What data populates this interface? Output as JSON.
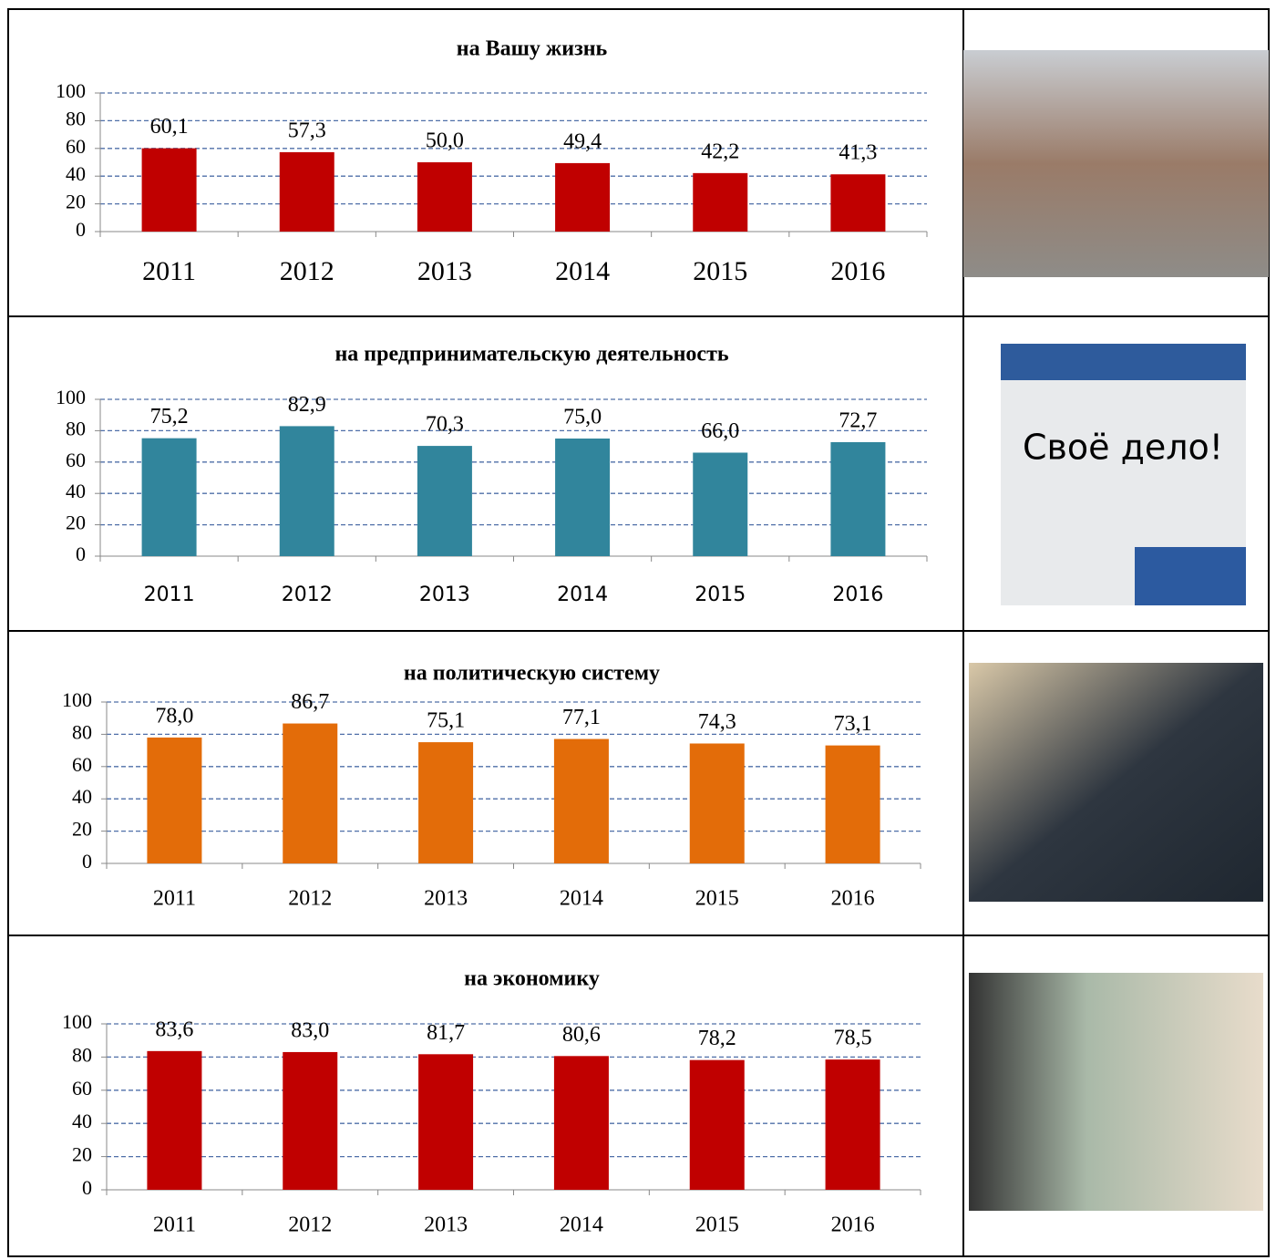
{
  "chart_data": [
    {
      "type": "bar",
      "title": "на Вашу жизнь",
      "categories": [
        "2011",
        "2012",
        "2013",
        "2014",
        "2015",
        "2016"
      ],
      "values": [
        60.1,
        57.3,
        50.0,
        49.4,
        42.2,
        41.3
      ],
      "value_labels": [
        "60,1",
        "57,3",
        "50,0",
        "49,4",
        "42,2",
        "41,3"
      ],
      "color": "#c00000",
      "ylim": [
        0,
        100
      ],
      "yticks": [
        0,
        20,
        40,
        60,
        80,
        100
      ],
      "grid": true
    },
    {
      "type": "bar",
      "title": "на предпринимательскую деятельность",
      "categories": [
        "2011",
        "2012",
        "2013",
        "2014",
        "2015",
        "2016"
      ],
      "values": [
        75.2,
        82.9,
        70.3,
        75.0,
        66.0,
        72.7
      ],
      "value_labels": [
        "75,2",
        "82,9",
        "70,3",
        "75,0",
        "66,0",
        "72,7"
      ],
      "color": "#31859c",
      "ylim": [
        0,
        100
      ],
      "yticks": [
        0,
        20,
        40,
        60,
        80,
        100
      ],
      "grid": true
    },
    {
      "type": "bar",
      "title": "на политическую систему",
      "categories": [
        "2011",
        "2012",
        "2013",
        "2014",
        "2015",
        "2016"
      ],
      "values": [
        78.0,
        86.7,
        75.1,
        77.1,
        74.3,
        73.1
      ],
      "value_labels": [
        "78,0",
        "86,7",
        "75,1",
        "77,1",
        "74,3",
        "73,1"
      ],
      "color": "#e36c09",
      "ylim": [
        0,
        100
      ],
      "yticks": [
        0,
        20,
        40,
        60,
        80,
        100
      ],
      "grid": true
    },
    {
      "type": "bar",
      "title": "на экономику",
      "categories": [
        "2011",
        "2012",
        "2013",
        "2014",
        "2015",
        "2016"
      ],
      "values": [
        83.6,
        83.0,
        81.7,
        80.6,
        78.2,
        78.5
      ],
      "value_labels": [
        "83,6",
        "83,0",
        "81,7",
        "80,6",
        "78,2",
        "78,5"
      ],
      "color": "#c00000",
      "ylim": [
        0,
        100
      ],
      "yticks": [
        0,
        20,
        40,
        60,
        80,
        100
      ],
      "grid": true
    }
  ],
  "photo_text": "Своё дело!"
}
